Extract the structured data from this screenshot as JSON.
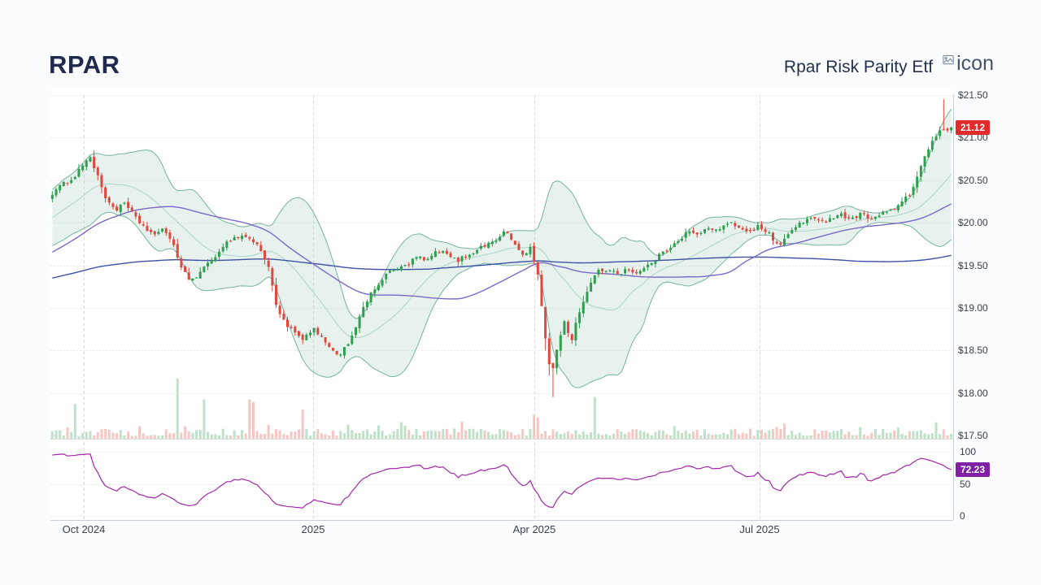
{
  "page": {
    "background": "#fbfcfd"
  },
  "header": {
    "title": "RPAR",
    "subtitle": "Rpar Risk Parity Etf",
    "icon_alt": "icon"
  },
  "chart_data": {
    "type": "candlestick",
    "symbol": "RPAR",
    "name": "Rpar Risk Parity Etf",
    "panels": [
      "price-with-volume",
      "rsi"
    ],
    "overlays": [
      "bollinger-band",
      "ma-fast",
      "ma-slow"
    ],
    "y_axis": {
      "min": 17.5,
      "max": 21.5,
      "ticks": [
        {
          "value": 21.5,
          "label": "$21.50"
        },
        {
          "value": 21.0,
          "label": "$21.00"
        },
        {
          "value": 20.5,
          "label": "$20.50"
        },
        {
          "value": 20.0,
          "label": "$20.00"
        },
        {
          "value": 19.5,
          "label": "$19.50"
        },
        {
          "value": 19.0,
          "label": "$19.00"
        },
        {
          "value": 18.5,
          "label": "$18.50"
        },
        {
          "value": 18.0,
          "label": "$18.00"
        },
        {
          "value": 17.5,
          "label": "$17.50"
        }
      ]
    },
    "x_ticks": [
      {
        "label": "Oct 2024",
        "pos": 0.037
      },
      {
        "label": "2025",
        "pos": 0.291
      },
      {
        "label": "Apr 2025",
        "pos": 0.536
      },
      {
        "label": "Jul 2025",
        "pos": 0.786
      }
    ],
    "last_price": {
      "value": 21.12,
      "label": "21.12"
    },
    "rsi_panel": {
      "last": {
        "value": 72.23,
        "label": "72.23"
      },
      "ticks": [
        {
          "value": 100,
          "label": "100"
        },
        {
          "value": 50,
          "label": "50"
        },
        {
          "value": 0,
          "label": "0"
        }
      ]
    },
    "extremes": {
      "high": 21.45,
      "low": 17.95
    },
    "price_path_anchors": [
      [
        0.0,
        20.35
      ],
      [
        0.012,
        20.45
      ],
      [
        0.025,
        20.55
      ],
      [
        0.034,
        20.68
      ],
      [
        0.041,
        20.8
      ],
      [
        0.05,
        20.55
      ],
      [
        0.059,
        20.3
      ],
      [
        0.07,
        20.15
      ],
      [
        0.081,
        20.22
      ],
      [
        0.093,
        20.05
      ],
      [
        0.105,
        19.92
      ],
      [
        0.115,
        19.85
      ],
      [
        0.124,
        19.92
      ],
      [
        0.133,
        19.8
      ],
      [
        0.144,
        19.45
      ],
      [
        0.153,
        19.32
      ],
      [
        0.165,
        19.42
      ],
      [
        0.177,
        19.55
      ],
      [
        0.187,
        19.7
      ],
      [
        0.198,
        19.8
      ],
      [
        0.21,
        19.85
      ],
      [
        0.222,
        19.8
      ],
      [
        0.231,
        19.7
      ],
      [
        0.241,
        19.45
      ],
      [
        0.25,
        19.0
      ],
      [
        0.259,
        18.82
      ],
      [
        0.27,
        18.7
      ],
      [
        0.279,
        18.62
      ],
      [
        0.291,
        18.75
      ],
      [
        0.3,
        18.65
      ],
      [
        0.309,
        18.5
      ],
      [
        0.318,
        18.44
      ],
      [
        0.33,
        18.6
      ],
      [
        0.34,
        18.85
      ],
      [
        0.351,
        19.1
      ],
      [
        0.36,
        19.25
      ],
      [
        0.372,
        19.4
      ],
      [
        0.384,
        19.46
      ],
      [
        0.395,
        19.5
      ],
      [
        0.405,
        19.6
      ],
      [
        0.417,
        19.55
      ],
      [
        0.429,
        19.68
      ],
      [
        0.44,
        19.62
      ],
      [
        0.45,
        19.55
      ],
      [
        0.462,
        19.62
      ],
      [
        0.474,
        19.7
      ],
      [
        0.485,
        19.75
      ],
      [
        0.495,
        19.82
      ],
      [
        0.505,
        19.9
      ],
      [
        0.514,
        19.75
      ],
      [
        0.523,
        19.62
      ],
      [
        0.532,
        19.7
      ],
      [
        0.541,
        19.35
      ],
      [
        0.548,
        18.65
      ],
      [
        0.555,
        18.2
      ],
      [
        0.562,
        18.55
      ],
      [
        0.569,
        18.85
      ],
      [
        0.577,
        18.6
      ],
      [
        0.586,
        18.95
      ],
      [
        0.595,
        19.2
      ],
      [
        0.606,
        19.42
      ],
      [
        0.618,
        19.46
      ],
      [
        0.629,
        19.4
      ],
      [
        0.64,
        19.46
      ],
      [
        0.651,
        19.4
      ],
      [
        0.663,
        19.5
      ],
      [
        0.674,
        19.6
      ],
      [
        0.685,
        19.7
      ],
      [
        0.696,
        19.8
      ],
      [
        0.708,
        19.9
      ],
      [
        0.719,
        19.85
      ],
      [
        0.73,
        19.95
      ],
      [
        0.741,
        19.9
      ],
      [
        0.753,
        20.0
      ],
      [
        0.764,
        19.95
      ],
      [
        0.775,
        19.9
      ],
      [
        0.786,
        19.96
      ],
      [
        0.798,
        19.86
      ],
      [
        0.809,
        19.72
      ],
      [
        0.82,
        19.88
      ],
      [
        0.831,
        20.0
      ],
      [
        0.843,
        20.05
      ],
      [
        0.854,
        20.0
      ],
      [
        0.865,
        20.06
      ],
      [
        0.876,
        20.1
      ],
      [
        0.888,
        20.05
      ],
      [
        0.899,
        20.1
      ],
      [
        0.91,
        20.06
      ],
      [
        0.922,
        20.1
      ],
      [
        0.933,
        20.15
      ],
      [
        0.944,
        20.22
      ],
      [
        0.955,
        20.35
      ],
      [
        0.964,
        20.6
      ],
      [
        0.973,
        20.85
      ],
      [
        0.982,
        21.0
      ],
      [
        0.989,
        21.08
      ],
      [
        1.0,
        21.12
      ]
    ],
    "volume_spikes": [
      [
        0.024,
        0.55,
        1
      ],
      [
        0.138,
        0.95,
        1
      ],
      [
        0.168,
        0.62,
        1
      ],
      [
        0.219,
        0.62,
        -1
      ],
      [
        0.225,
        0.58,
        -1
      ],
      [
        0.278,
        0.46,
        -1
      ],
      [
        0.33,
        0.22,
        1
      ],
      [
        0.455,
        0.27,
        -1
      ],
      [
        0.535,
        0.38,
        -1
      ],
      [
        0.541,
        0.34,
        -1
      ],
      [
        0.603,
        0.66,
        1
      ],
      [
        0.69,
        0.2,
        1
      ],
      [
        0.816,
        0.24,
        -1
      ],
      [
        0.94,
        0.18,
        1
      ],
      [
        0.985,
        0.26,
        1
      ]
    ]
  },
  "colors": {
    "up": "#2f9e4f",
    "down": "#e2463c",
    "vol_up": "#bfe0c9",
    "vol_down": "#f6c6c2",
    "band_fill": "rgba(121,184,162,0.18)",
    "band_edge": "rgba(105,172,148,0.9)",
    "band_mid": "rgba(105,172,148,0.45)",
    "ma_fast": "#7b68c8",
    "ma_slow": "#3f51a5",
    "rsi_line": "#a226a8",
    "price_badge": "#e12b2b",
    "rsi_badge": "#8021a5",
    "grid": "#e2e5e9",
    "grid_vertical": "#d8dbe0",
    "axis_border": "#c6cfdb",
    "plot_bg": "#ffffff",
    "axis_text": "#39414f"
  }
}
